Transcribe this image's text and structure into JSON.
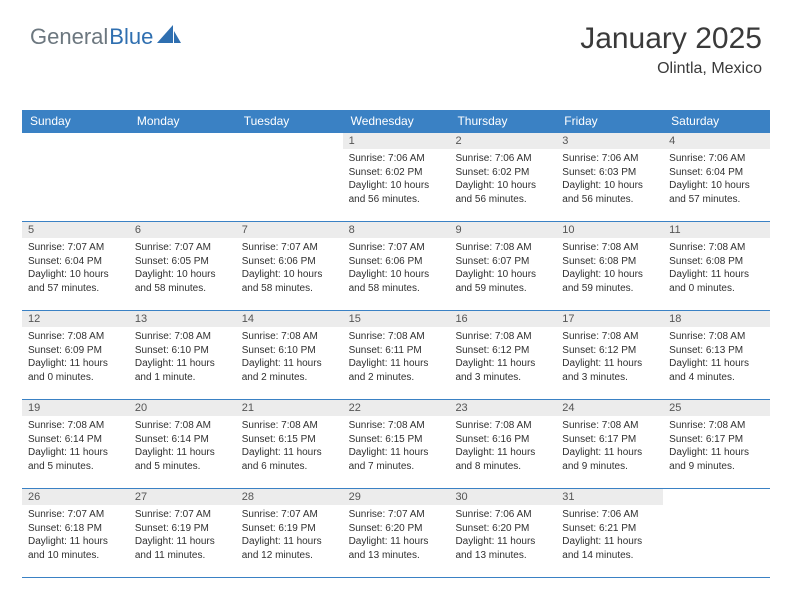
{
  "logo": {
    "text1": "General",
    "text2": "Blue"
  },
  "title": "January 2025",
  "subtitle": "Olintla, Mexico",
  "colors": {
    "header_bg": "#3a81c4",
    "header_text": "#ffffff",
    "date_bg": "#ececec",
    "date_text": "#555555",
    "body_text": "#303030",
    "border": "#3a81c4",
    "logo_gray": "#6c777f",
    "logo_blue": "#2f6fb0"
  },
  "day_names": [
    "Sunday",
    "Monday",
    "Tuesday",
    "Wednesday",
    "Thursday",
    "Friday",
    "Saturday"
  ],
  "weeks": [
    [
      null,
      null,
      null,
      {
        "date": "1",
        "sunrise": "7:06 AM",
        "sunset": "6:02 PM",
        "daylight": "10 hours and 56 minutes."
      },
      {
        "date": "2",
        "sunrise": "7:06 AM",
        "sunset": "6:02 PM",
        "daylight": "10 hours and 56 minutes."
      },
      {
        "date": "3",
        "sunrise": "7:06 AM",
        "sunset": "6:03 PM",
        "daylight": "10 hours and 56 minutes."
      },
      {
        "date": "4",
        "sunrise": "7:06 AM",
        "sunset": "6:04 PM",
        "daylight": "10 hours and 57 minutes."
      }
    ],
    [
      {
        "date": "5",
        "sunrise": "7:07 AM",
        "sunset": "6:04 PM",
        "daylight": "10 hours and 57 minutes."
      },
      {
        "date": "6",
        "sunrise": "7:07 AM",
        "sunset": "6:05 PM",
        "daylight": "10 hours and 58 minutes."
      },
      {
        "date": "7",
        "sunrise": "7:07 AM",
        "sunset": "6:06 PM",
        "daylight": "10 hours and 58 minutes."
      },
      {
        "date": "8",
        "sunrise": "7:07 AM",
        "sunset": "6:06 PM",
        "daylight": "10 hours and 58 minutes."
      },
      {
        "date": "9",
        "sunrise": "7:08 AM",
        "sunset": "6:07 PM",
        "daylight": "10 hours and 59 minutes."
      },
      {
        "date": "10",
        "sunrise": "7:08 AM",
        "sunset": "6:08 PM",
        "daylight": "10 hours and 59 minutes."
      },
      {
        "date": "11",
        "sunrise": "7:08 AM",
        "sunset": "6:08 PM",
        "daylight": "11 hours and 0 minutes."
      }
    ],
    [
      {
        "date": "12",
        "sunrise": "7:08 AM",
        "sunset": "6:09 PM",
        "daylight": "11 hours and 0 minutes."
      },
      {
        "date": "13",
        "sunrise": "7:08 AM",
        "sunset": "6:10 PM",
        "daylight": "11 hours and 1 minute."
      },
      {
        "date": "14",
        "sunrise": "7:08 AM",
        "sunset": "6:10 PM",
        "daylight": "11 hours and 2 minutes."
      },
      {
        "date": "15",
        "sunrise": "7:08 AM",
        "sunset": "6:11 PM",
        "daylight": "11 hours and 2 minutes."
      },
      {
        "date": "16",
        "sunrise": "7:08 AM",
        "sunset": "6:12 PM",
        "daylight": "11 hours and 3 minutes."
      },
      {
        "date": "17",
        "sunrise": "7:08 AM",
        "sunset": "6:12 PM",
        "daylight": "11 hours and 3 minutes."
      },
      {
        "date": "18",
        "sunrise": "7:08 AM",
        "sunset": "6:13 PM",
        "daylight": "11 hours and 4 minutes."
      }
    ],
    [
      {
        "date": "19",
        "sunrise": "7:08 AM",
        "sunset": "6:14 PM",
        "daylight": "11 hours and 5 minutes."
      },
      {
        "date": "20",
        "sunrise": "7:08 AM",
        "sunset": "6:14 PM",
        "daylight": "11 hours and 5 minutes."
      },
      {
        "date": "21",
        "sunrise": "7:08 AM",
        "sunset": "6:15 PM",
        "daylight": "11 hours and 6 minutes."
      },
      {
        "date": "22",
        "sunrise": "7:08 AM",
        "sunset": "6:15 PM",
        "daylight": "11 hours and 7 minutes."
      },
      {
        "date": "23",
        "sunrise": "7:08 AM",
        "sunset": "6:16 PM",
        "daylight": "11 hours and 8 minutes."
      },
      {
        "date": "24",
        "sunrise": "7:08 AM",
        "sunset": "6:17 PM",
        "daylight": "11 hours and 9 minutes."
      },
      {
        "date": "25",
        "sunrise": "7:08 AM",
        "sunset": "6:17 PM",
        "daylight": "11 hours and 9 minutes."
      }
    ],
    [
      {
        "date": "26",
        "sunrise": "7:07 AM",
        "sunset": "6:18 PM",
        "daylight": "11 hours and 10 minutes."
      },
      {
        "date": "27",
        "sunrise": "7:07 AM",
        "sunset": "6:19 PM",
        "daylight": "11 hours and 11 minutes."
      },
      {
        "date": "28",
        "sunrise": "7:07 AM",
        "sunset": "6:19 PM",
        "daylight": "11 hours and 12 minutes."
      },
      {
        "date": "29",
        "sunrise": "7:07 AM",
        "sunset": "6:20 PM",
        "daylight": "11 hours and 13 minutes."
      },
      {
        "date": "30",
        "sunrise": "7:06 AM",
        "sunset": "6:20 PM",
        "daylight": "11 hours and 13 minutes."
      },
      {
        "date": "31",
        "sunrise": "7:06 AM",
        "sunset": "6:21 PM",
        "daylight": "11 hours and 14 minutes."
      },
      null
    ]
  ],
  "labels": {
    "sunrise": "Sunrise:",
    "sunset": "Sunset:",
    "daylight": "Daylight:"
  }
}
